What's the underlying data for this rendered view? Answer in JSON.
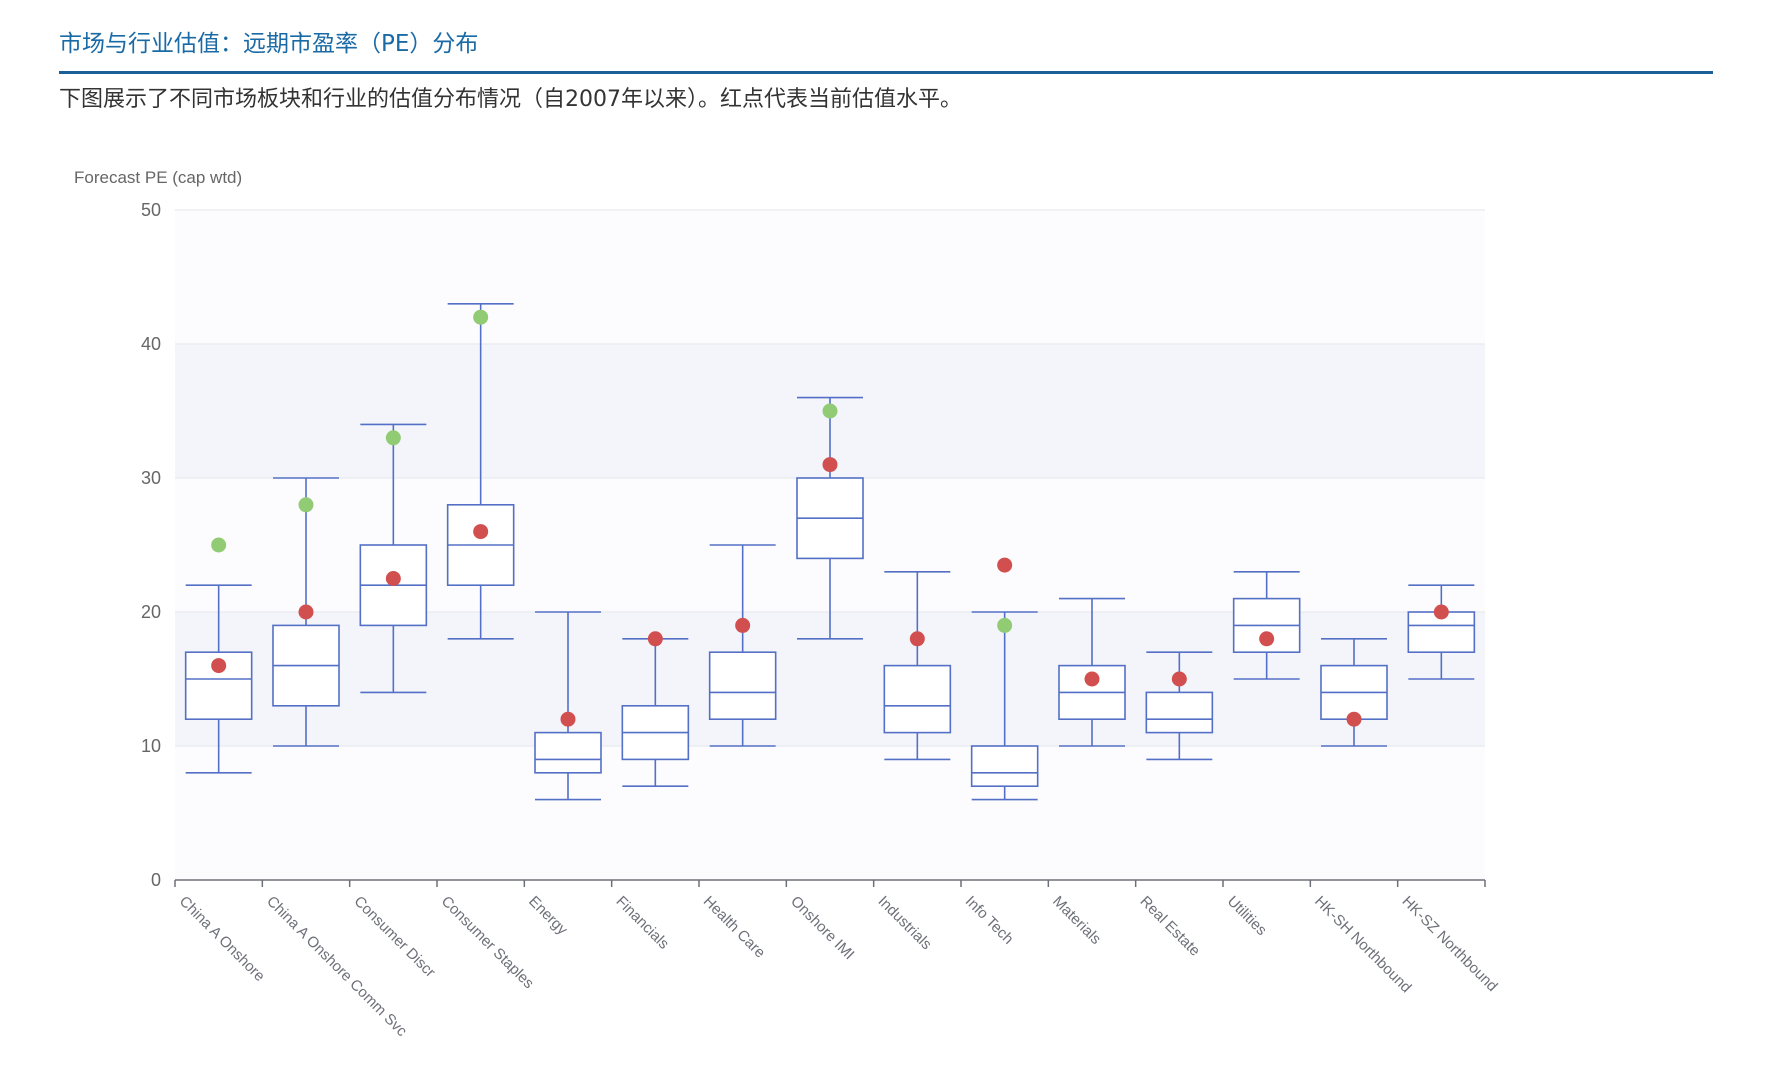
{
  "header": {
    "title": "市场与行业估值：远期市盈率（PE）分布",
    "subtitle": "下图展示了不同市场板块和行业的估值分布情况（自2007年以来）。红点代表当前估值水平。"
  },
  "colors": {
    "box": "#5470c6",
    "current": "#d14f4f",
    "high": "#91cc75",
    "band": "#f3f5fb",
    "title": "#1a6aa6"
  },
  "chart_data": {
    "type": "boxplot",
    "ylabel": "Forecast PE (cap wtd)",
    "ylim": [
      0,
      50
    ],
    "yticks": [
      0,
      10,
      20,
      30,
      40,
      50
    ],
    "categories": [
      "China A Onshore",
      "China A Onshore Comm Svc",
      "Consumer Discr",
      "Consumer Staples",
      "Energy",
      "Financials",
      "Health Care",
      "Onshore IMI",
      "Industrials",
      "Info Tech",
      "Materials",
      "Real Estate",
      "Utilities",
      "HK-SH Northbound",
      "HK-SZ Northbound"
    ],
    "boxes": [
      {
        "min": 8,
        "q1": 12,
        "median": 15,
        "q3": 17,
        "max": 22
      },
      {
        "min": 10,
        "q1": 13,
        "median": 16,
        "q3": 19,
        "max": 30
      },
      {
        "min": 14,
        "q1": 19,
        "median": 22,
        "q3": 25,
        "max": 34
      },
      {
        "min": 18,
        "q1": 22,
        "median": 25,
        "q3": 28,
        "max": 43
      },
      {
        "min": 6,
        "q1": 8,
        "median": 9,
        "q3": 11,
        "max": 20
      },
      {
        "min": 7,
        "q1": 9,
        "median": 11,
        "q3": 13,
        "max": 18
      },
      {
        "min": 10,
        "q1": 12,
        "median": 14,
        "q3": 17,
        "max": 25
      },
      {
        "min": 18,
        "q1": 24,
        "median": 27,
        "q3": 30,
        "max": 36
      },
      {
        "min": 9,
        "q1": 11,
        "median": 13,
        "q3": 16,
        "max": 23
      },
      {
        "min": 6,
        "q1": 7,
        "median": 8,
        "q3": 10,
        "max": 20
      },
      {
        "min": 10,
        "q1": 12,
        "median": 14,
        "q3": 16,
        "max": 21
      },
      {
        "min": 9,
        "q1": 11,
        "median": 12,
        "q3": 14,
        "max": 17
      },
      {
        "min": 15,
        "q1": 17,
        "median": 19,
        "q3": 21,
        "max": 23
      },
      {
        "min": 10,
        "q1": 12,
        "median": 14,
        "q3": 16,
        "max": 18
      },
      {
        "min": 15,
        "q1": 17,
        "median": 19,
        "q3": 20,
        "max": 22
      }
    ],
    "current": [
      16,
      20,
      22.5,
      26,
      12,
      18,
      19,
      31,
      18,
      23.5,
      15,
      15,
      18,
      12,
      20
    ],
    "green_markers": [
      {
        "index": 0,
        "value": 25
      },
      {
        "index": 1,
        "value": 28
      },
      {
        "index": 2,
        "value": 33
      },
      {
        "index": 3,
        "value": 42
      },
      {
        "index": 7,
        "value": 35
      },
      {
        "index": 9,
        "value": 19
      }
    ]
  }
}
